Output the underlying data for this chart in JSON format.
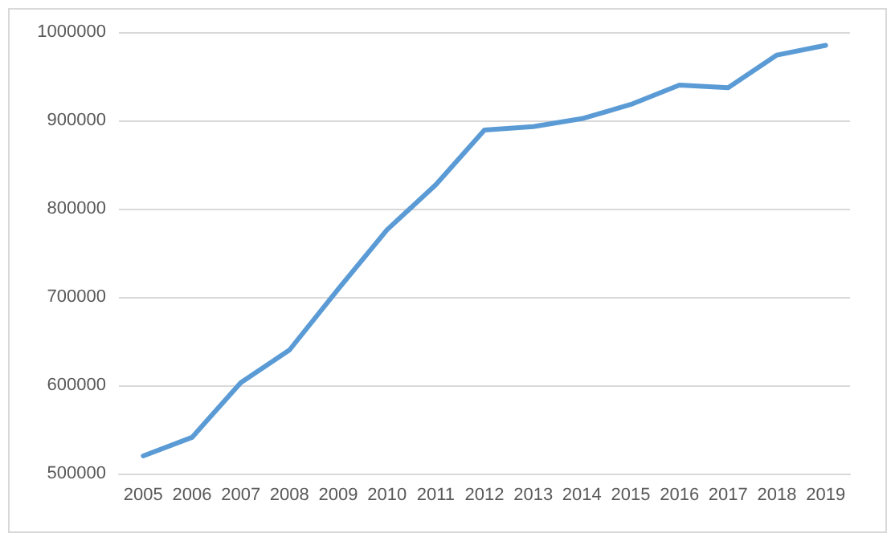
{
  "chart_data": {
    "type": "line",
    "categories": [
      "2005",
      "2006",
      "2007",
      "2008",
      "2009",
      "2010",
      "2011",
      "2012",
      "2013",
      "2014",
      "2015",
      "2016",
      "2017",
      "2018",
      "2019"
    ],
    "series": [
      {
        "color": "#5b9bd5",
        "values": [
          520000,
          541000,
          603000,
          640000,
          709000,
          776000,
          827000,
          889000,
          893000,
          902000,
          918000,
          940000,
          937000,
          974000,
          985000
        ]
      }
    ],
    "ylim": [
      500000,
      1000000
    ],
    "yticks": [
      500000,
      600000,
      700000,
      800000,
      900000,
      1000000
    ],
    "grid": "y",
    "marker": "none",
    "line_style": "solid"
  }
}
